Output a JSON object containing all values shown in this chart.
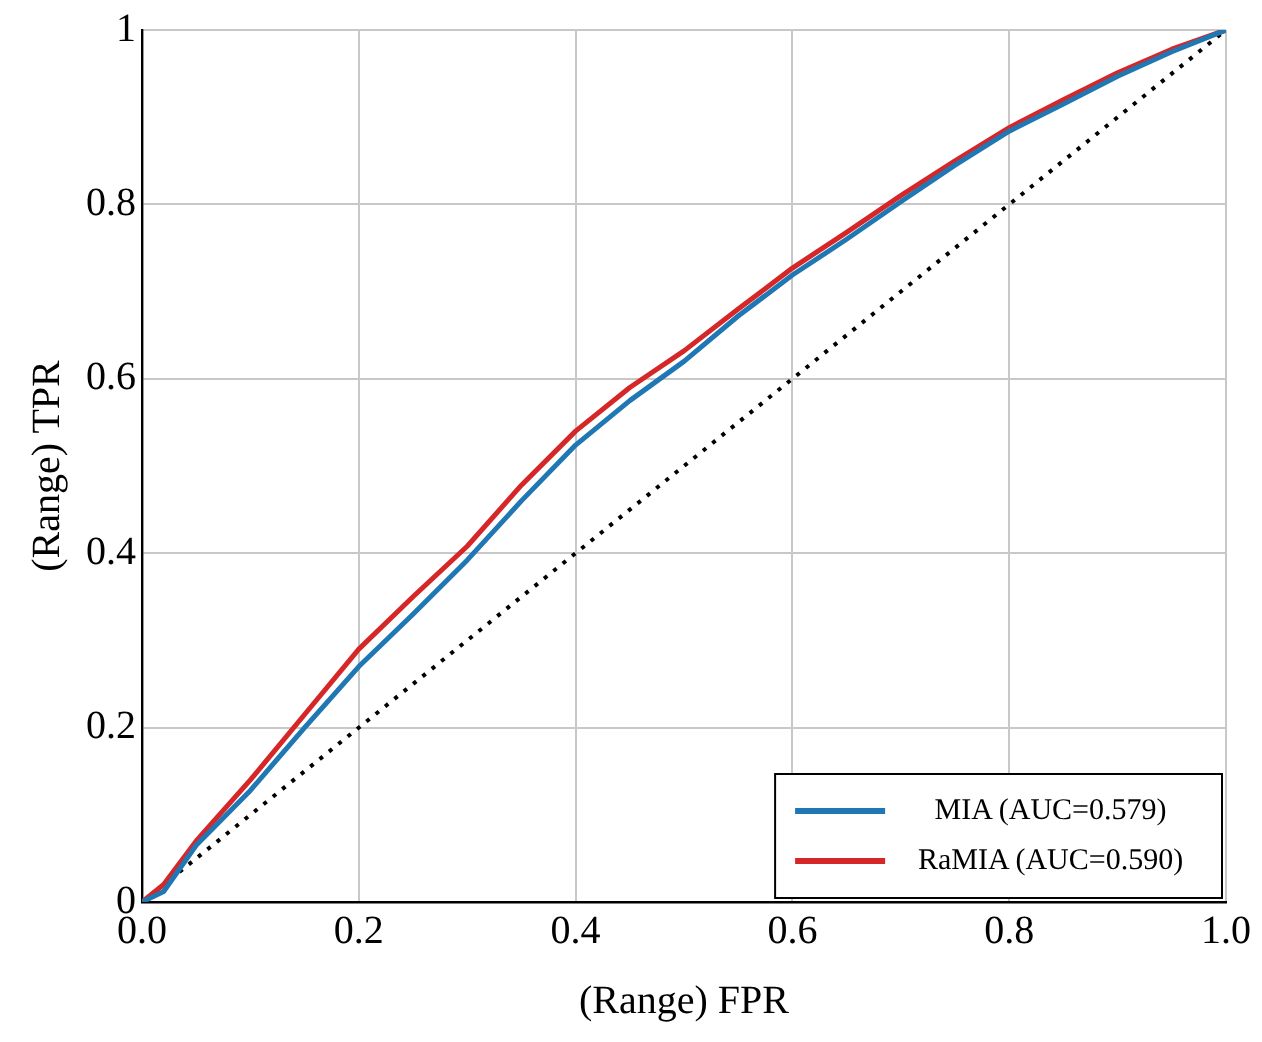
{
  "chart_data": {
    "type": "line",
    "xlabel": "(Range) FPR",
    "ylabel": "(Range) TPR",
    "xlim": [
      0,
      1
    ],
    "ylim": [
      0,
      1
    ],
    "xticks": [
      {
        "value": 0,
        "label": "0.0"
      },
      0.2,
      0.4,
      0.6,
      0.8,
      {
        "value": 1,
        "label": "1.0"
      }
    ],
    "yticks": [
      0,
      0.2,
      0.4,
      0.6,
      0.8,
      1
    ],
    "grid": true,
    "legend": "bottom right",
    "marker": "none",
    "x": [
      0,
      0.02,
      0.05,
      0.1,
      0.15,
      0.2,
      0.25,
      0.3,
      0.35,
      0.4,
      0.45,
      0.5,
      0.55,
      0.6,
      0.65,
      0.7,
      0.75,
      0.8,
      0.85,
      0.9,
      0.95,
      1
    ],
    "series": [
      {
        "name": "MIA (AUC=0.579)",
        "color": "#1f77b4",
        "values": [
          0,
          0.012,
          0.065,
          0.128,
          0.2,
          0.27,
          0.33,
          0.392,
          0.46,
          0.524,
          0.575,
          0.62,
          0.672,
          0.719,
          0.76,
          0.803,
          0.845,
          0.884,
          0.915,
          0.947,
          0.975,
          1
        ]
      },
      {
        "name": "RaMIA (AUC=0.590)",
        "color": "#d62728",
        "values": [
          0,
          0.02,
          0.07,
          0.14,
          0.215,
          0.29,
          0.35,
          0.408,
          0.478,
          0.54,
          0.59,
          0.632,
          0.68,
          0.727,
          0.768,
          0.81,
          0.85,
          0.888,
          0.92,
          0.951,
          0.978,
          1
        ]
      },
      {
        "color": "#000000",
        "line_style": "dotted",
        "x": [
          0,
          1
        ],
        "values": [
          0,
          1
        ]
      }
    ]
  }
}
